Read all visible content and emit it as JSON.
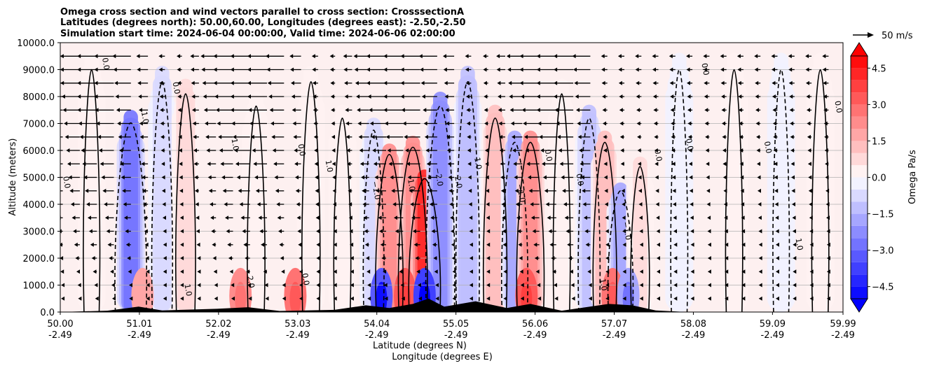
{
  "chart_data": {
    "type": "contour",
    "title_lines": [
      "Omega cross section and wind vectors parallel to cross section: CrosssectionA",
      "Latitudes (degrees north): 50.00,60.00, Longitudes (degrees east): -2.50,-2.50",
      "Simulation start time: 2024-06-04 00:00:00, Valid time: 2024-06-06 02:00:00"
    ],
    "ylabel": "Altitude (meters)",
    "xlabel_lines": [
      "Latitude (degrees N)",
      "Longitude (degrees E)"
    ],
    "ylim": [
      0,
      10000
    ],
    "y_ticks": [
      {
        "value": 0,
        "label": "0.0"
      },
      {
        "value": 1000,
        "label": "1000.0"
      },
      {
        "value": 2000,
        "label": "2000.0"
      },
      {
        "value": 3000,
        "label": "3000.0"
      },
      {
        "value": 4000,
        "label": "4000.0"
      },
      {
        "value": 5000,
        "label": "5000.0"
      },
      {
        "value": 6000,
        "label": "6000.0"
      },
      {
        "value": 7000,
        "label": "7000.0"
      },
      {
        "value": 8000,
        "label": "8000.0"
      },
      {
        "value": 9000,
        "label": "9000.0"
      },
      {
        "value": 10000,
        "label": "10000.0"
      }
    ],
    "xlim": [
      50.0,
      59.99
    ],
    "x_ticks": [
      {
        "lat": 50.0,
        "label_lat": "50.00",
        "label_lon": "-2.49"
      },
      {
        "lat": 51.01,
        "label_lat": "51.01",
        "label_lon": "-2.49"
      },
      {
        "lat": 52.02,
        "label_lat": "52.02",
        "label_lon": "-2.49"
      },
      {
        "lat": 53.03,
        "label_lat": "53.03",
        "label_lon": "-2.49"
      },
      {
        "lat": 54.04,
        "label_lat": "54.04",
        "label_lon": "-2.49"
      },
      {
        "lat": 55.05,
        "label_lat": "55.05",
        "label_lon": "-2.49"
      },
      {
        "lat": 56.06,
        "label_lat": "56.06",
        "label_lon": "-2.49"
      },
      {
        "lat": 57.07,
        "label_lat": "57.07",
        "label_lon": "-2.49"
      },
      {
        "lat": 58.08,
        "label_lat": "58.08",
        "label_lon": "-2.49"
      },
      {
        "lat": 59.09,
        "label_lat": "59.09",
        "label_lon": "-2.49"
      },
      {
        "lat": 59.99,
        "label_lat": "59.99",
        "label_lon": "-2.49"
      }
    ],
    "colorbar": {
      "label": "Omega Pa/s",
      "min": -5.0,
      "max": 5.0,
      "ticks": [
        {
          "value": 4.5,
          "label": "4.5"
        },
        {
          "value": 3.0,
          "label": "3.0"
        },
        {
          "value": 1.5,
          "label": "1.5"
        },
        {
          "value": 0.0,
          "label": "0.0"
        },
        {
          "value": -1.5,
          "label": "−1.5"
        },
        {
          "value": -3.0,
          "label": "−3.0"
        },
        {
          "value": -4.5,
          "label": "−4.5"
        }
      ],
      "colormap": "bwr",
      "extend": "both"
    },
    "quiver_key": {
      "label": "50 m/s"
    },
    "contour_labels": [
      "0.0",
      "1.0",
      "−1.0",
      "2.0",
      "−2.0"
    ],
    "omega_columns": [
      {
        "lat": 50.4,
        "omega": 0.2,
        "top": 10000
      },
      {
        "lat": 50.9,
        "omega": -3.0,
        "top": 7800
      },
      {
        "lat": 51.3,
        "omega": -1.0,
        "top": 9500
      },
      {
        "lat": 51.6,
        "omega": 0.8,
        "top": 9000
      },
      {
        "lat": 52.5,
        "omega": 0.4,
        "top": 8500
      },
      {
        "lat": 53.2,
        "omega": 0.5,
        "top": 9500
      },
      {
        "lat": 53.6,
        "omega": 0.3,
        "top": 8000
      },
      {
        "lat": 54.0,
        "omega": -1.0,
        "top": 7500
      },
      {
        "lat": 54.2,
        "omega": 2.2,
        "top": 6500
      },
      {
        "lat": 54.5,
        "omega": 2.5,
        "top": 6800
      },
      {
        "lat": 54.65,
        "omega": 4.5,
        "top": 5500
      },
      {
        "lat": 54.85,
        "omega": -2.5,
        "top": 8500
      },
      {
        "lat": 55.2,
        "omega": -1.5,
        "top": 9500
      },
      {
        "lat": 55.55,
        "omega": 1.5,
        "top": 8000
      },
      {
        "lat": 55.8,
        "omega": -2.0,
        "top": 7000
      },
      {
        "lat": 56.0,
        "omega": 2.2,
        "top": 7000
      },
      {
        "lat": 56.4,
        "omega": 0.3,
        "top": 9000
      },
      {
        "lat": 56.75,
        "omega": -1.2,
        "top": 8000
      },
      {
        "lat": 56.95,
        "omega": 1.5,
        "top": 7000
      },
      {
        "lat": 57.15,
        "omega": -1.8,
        "top": 5000
      },
      {
        "lat": 57.4,
        "omega": 0.6,
        "top": 6000
      },
      {
        "lat": 57.9,
        "omega": -0.3,
        "top": 10000
      },
      {
        "lat": 58.6,
        "omega": 0.3,
        "top": 10000
      },
      {
        "lat": 59.2,
        "omega": -0.2,
        "top": 10000
      },
      {
        "lat": 59.7,
        "omega": 0.3,
        "top": 10000
      }
    ],
    "near_surface_cells": [
      {
        "lat": 51.05,
        "omega": 1.5
      },
      {
        "lat": 52.3,
        "omega": 2.0
      },
      {
        "lat": 53.0,
        "omega": 2.5
      },
      {
        "lat": 54.1,
        "omega": -3.5
      },
      {
        "lat": 54.4,
        "omega": 3.0
      },
      {
        "lat": 54.65,
        "omega": -4.0
      },
      {
        "lat": 55.95,
        "omega": 3.0
      },
      {
        "lat": 57.05,
        "omega": 2.5
      },
      {
        "lat": 57.25,
        "omega": -2.0
      }
    ],
    "terrain": [
      {
        "lat": 50.0,
        "alt": 0
      },
      {
        "lat": 50.6,
        "alt": 50
      },
      {
        "lat": 51.0,
        "alt": 200
      },
      {
        "lat": 51.3,
        "alt": 60
      },
      {
        "lat": 52.0,
        "alt": 120
      },
      {
        "lat": 52.4,
        "alt": 180
      },
      {
        "lat": 52.8,
        "alt": 40
      },
      {
        "lat": 53.5,
        "alt": 80
      },
      {
        "lat": 53.9,
        "alt": 250
      },
      {
        "lat": 54.2,
        "alt": 150
      },
      {
        "lat": 54.5,
        "alt": 300
      },
      {
        "lat": 54.7,
        "alt": 500
      },
      {
        "lat": 54.9,
        "alt": 200
      },
      {
        "lat": 55.3,
        "alt": 400
      },
      {
        "lat": 55.7,
        "alt": 150
      },
      {
        "lat": 56.0,
        "alt": 300
      },
      {
        "lat": 56.4,
        "alt": 50
      },
      {
        "lat": 57.0,
        "alt": 300
      },
      {
        "lat": 57.3,
        "alt": 250
      },
      {
        "lat": 57.6,
        "alt": 60
      },
      {
        "lat": 58.0,
        "alt": 0
      },
      {
        "lat": 59.99,
        "alt": 0
      }
    ]
  }
}
